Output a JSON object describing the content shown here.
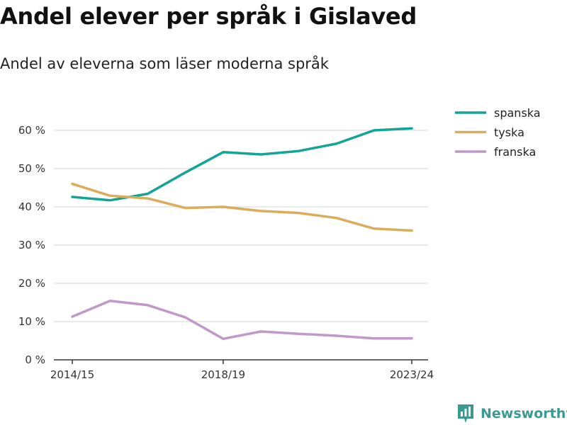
{
  "title": "Andel elever per språk i Gislaved",
  "subtitle": "Andel av eleverna som läser moderna språk",
  "brand": {
    "name": "Newsworthy",
    "color": "#3a9a92"
  },
  "chart_data": {
    "type": "line",
    "x_tick_labels": [
      "2014/15",
      "2018/19",
      "2023/24"
    ],
    "x_tick_index": [
      0,
      4,
      9
    ],
    "y_ticks": [
      0,
      10,
      20,
      30,
      40,
      50,
      60
    ],
    "y_tick_labels": [
      "0 %",
      "10 %",
      "20 %",
      "30 %",
      "40 %",
      "50 %",
      "60 %"
    ],
    "ylim": [
      0,
      60
    ],
    "x_count": 10,
    "grid": true,
    "legend": "top-right",
    "series": [
      {
        "name": "spanska",
        "color": "#13a397",
        "values": [
          42.6,
          41.7,
          43.4,
          49.0,
          54.3,
          53.7,
          54.6,
          56.5,
          60.0,
          60.5
        ]
      },
      {
        "name": "tyska",
        "color": "#dbac5a",
        "values": [
          46.0,
          42.9,
          42.2,
          39.7,
          40.0,
          38.9,
          38.4,
          37.1,
          34.3,
          33.8
        ]
      },
      {
        "name": "franska",
        "color": "#c198ca",
        "values": [
          11.3,
          15.4,
          14.3,
          11.1,
          5.5,
          7.4,
          6.8,
          6.3,
          5.6,
          5.6
        ]
      }
    ]
  }
}
